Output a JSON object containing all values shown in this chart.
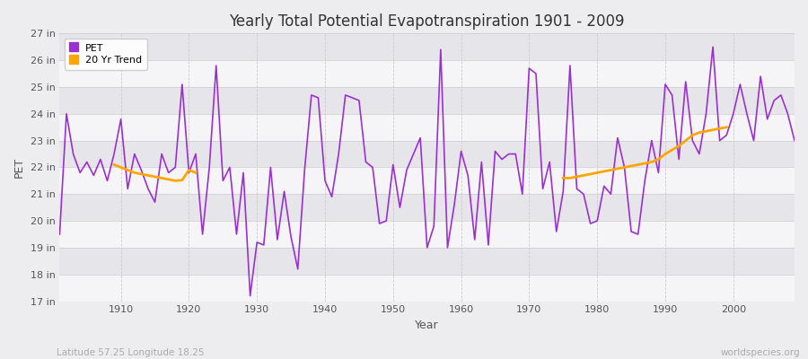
{
  "title": "Yearly Total Potential Evapotranspiration 1901 - 2009",
  "xlabel": "Year",
  "ylabel": "PET",
  "footnote_left": "Latitude 57.25 Longitude 18.25",
  "footnote_right": "worldspecies.org",
  "pet_color": "#9B30D0",
  "trend_color": "#FFA500",
  "background_color": "#EDEDF0",
  "band_color_light": "#F5F5F7",
  "band_color_dark": "#E5E5EA",
  "grid_color": "#CCCCCC",
  "ylim": [
    17,
    27
  ],
  "xlim": [
    1901,
    2009
  ],
  "ytick_labels": [
    "17 in",
    "18 in",
    "19 in",
    "20 in",
    "21 in",
    "22 in",
    "23 in",
    "24 in",
    "25 in",
    "26 in",
    "27 in"
  ],
  "ytick_values": [
    17,
    18,
    19,
    20,
    21,
    22,
    23,
    24,
    25,
    26,
    27
  ],
  "xtick_values": [
    1910,
    1920,
    1930,
    1940,
    1950,
    1960,
    1970,
    1980,
    1990,
    2000
  ],
  "pet_years": [
    1901,
    1902,
    1903,
    1904,
    1905,
    1906,
    1907,
    1908,
    1909,
    1910,
    1911,
    1912,
    1913,
    1914,
    1915,
    1916,
    1917,
    1918,
    1919,
    1920,
    1921,
    1922,
    1923,
    1924,
    1925,
    1926,
    1927,
    1928,
    1929,
    1930,
    1931,
    1932,
    1933,
    1934,
    1935,
    1936,
    1937,
    1938,
    1939,
    1940,
    1941,
    1942,
    1943,
    1944,
    1945,
    1946,
    1947,
    1948,
    1949,
    1950,
    1951,
    1952,
    1953,
    1954,
    1955,
    1956,
    1957,
    1958,
    1959,
    1960,
    1961,
    1962,
    1963,
    1964,
    1965,
    1966,
    1967,
    1968,
    1969,
    1970,
    1971,
    1972,
    1973,
    1974,
    1975,
    1976,
    1977,
    1978,
    1979,
    1980,
    1981,
    1982,
    1983,
    1984,
    1985,
    1986,
    1987,
    1988,
    1989,
    1990,
    1991,
    1992,
    1993,
    1994,
    1995,
    1996,
    1997,
    1998,
    1999,
    2000,
    2001,
    2002,
    2003,
    2004,
    2005,
    2006,
    2007,
    2008,
    2009
  ],
  "pet_values": [
    19.5,
    24.0,
    22.5,
    21.8,
    22.2,
    21.7,
    22.3,
    21.5,
    22.5,
    23.8,
    21.2,
    22.5,
    21.9,
    21.2,
    20.7,
    22.5,
    21.8,
    22.0,
    25.1,
    21.8,
    22.5,
    19.5,
    22.0,
    25.8,
    21.5,
    22.0,
    19.5,
    21.8,
    17.2,
    19.2,
    19.1,
    22.0,
    19.3,
    21.1,
    19.4,
    18.2,
    21.9,
    24.7,
    24.6,
    21.5,
    20.9,
    22.5,
    24.7,
    24.6,
    24.5,
    22.2,
    22.0,
    19.9,
    20.0,
    22.1,
    20.5,
    21.9,
    22.5,
    23.1,
    19.0,
    19.8,
    26.4,
    19.0,
    20.6,
    22.6,
    21.7,
    19.3,
    22.2,
    19.1,
    22.6,
    22.3,
    22.5,
    22.5,
    21.0,
    25.7,
    25.5,
    21.2,
    22.2,
    19.6,
    21.1,
    25.8,
    21.2,
    21.0,
    19.9,
    20.0,
    21.3,
    21.0,
    23.1,
    22.0,
    19.6,
    19.5,
    21.5,
    23.0,
    21.8,
    25.1,
    24.7,
    22.3,
    25.2,
    23.0,
    22.5,
    24.0,
    26.5,
    23.0,
    23.2,
    24.0,
    25.1,
    24.0,
    23.0,
    25.4,
    23.8,
    24.5,
    24.7,
    24.0,
    23.0
  ],
  "trend_segment1_years": [
    1909,
    1910,
    1911,
    1912,
    1913,
    1914,
    1915,
    1916,
    1917,
    1918,
    1919,
    1920,
    1921
  ],
  "trend_segment1_values": [
    22.1,
    22.0,
    21.9,
    21.8,
    21.75,
    21.7,
    21.65,
    21.6,
    21.55,
    21.5,
    21.52,
    21.9,
    21.8
  ],
  "trend_segment2_years": [
    1975,
    1976,
    1977,
    1978,
    1979,
    1980,
    1981,
    1982,
    1983,
    1984,
    1985,
    1986,
    1987,
    1988,
    1989,
    1990,
    1991,
    1992,
    1993,
    1994,
    1995,
    1996,
    1997,
    1998,
    1999
  ],
  "trend_segment2_values": [
    21.6,
    21.6,
    21.65,
    21.7,
    21.75,
    21.8,
    21.85,
    21.9,
    21.95,
    22.0,
    22.05,
    22.1,
    22.15,
    22.2,
    22.3,
    22.5,
    22.65,
    22.8,
    23.0,
    23.2,
    23.3,
    23.35,
    23.4,
    23.45,
    23.5
  ]
}
